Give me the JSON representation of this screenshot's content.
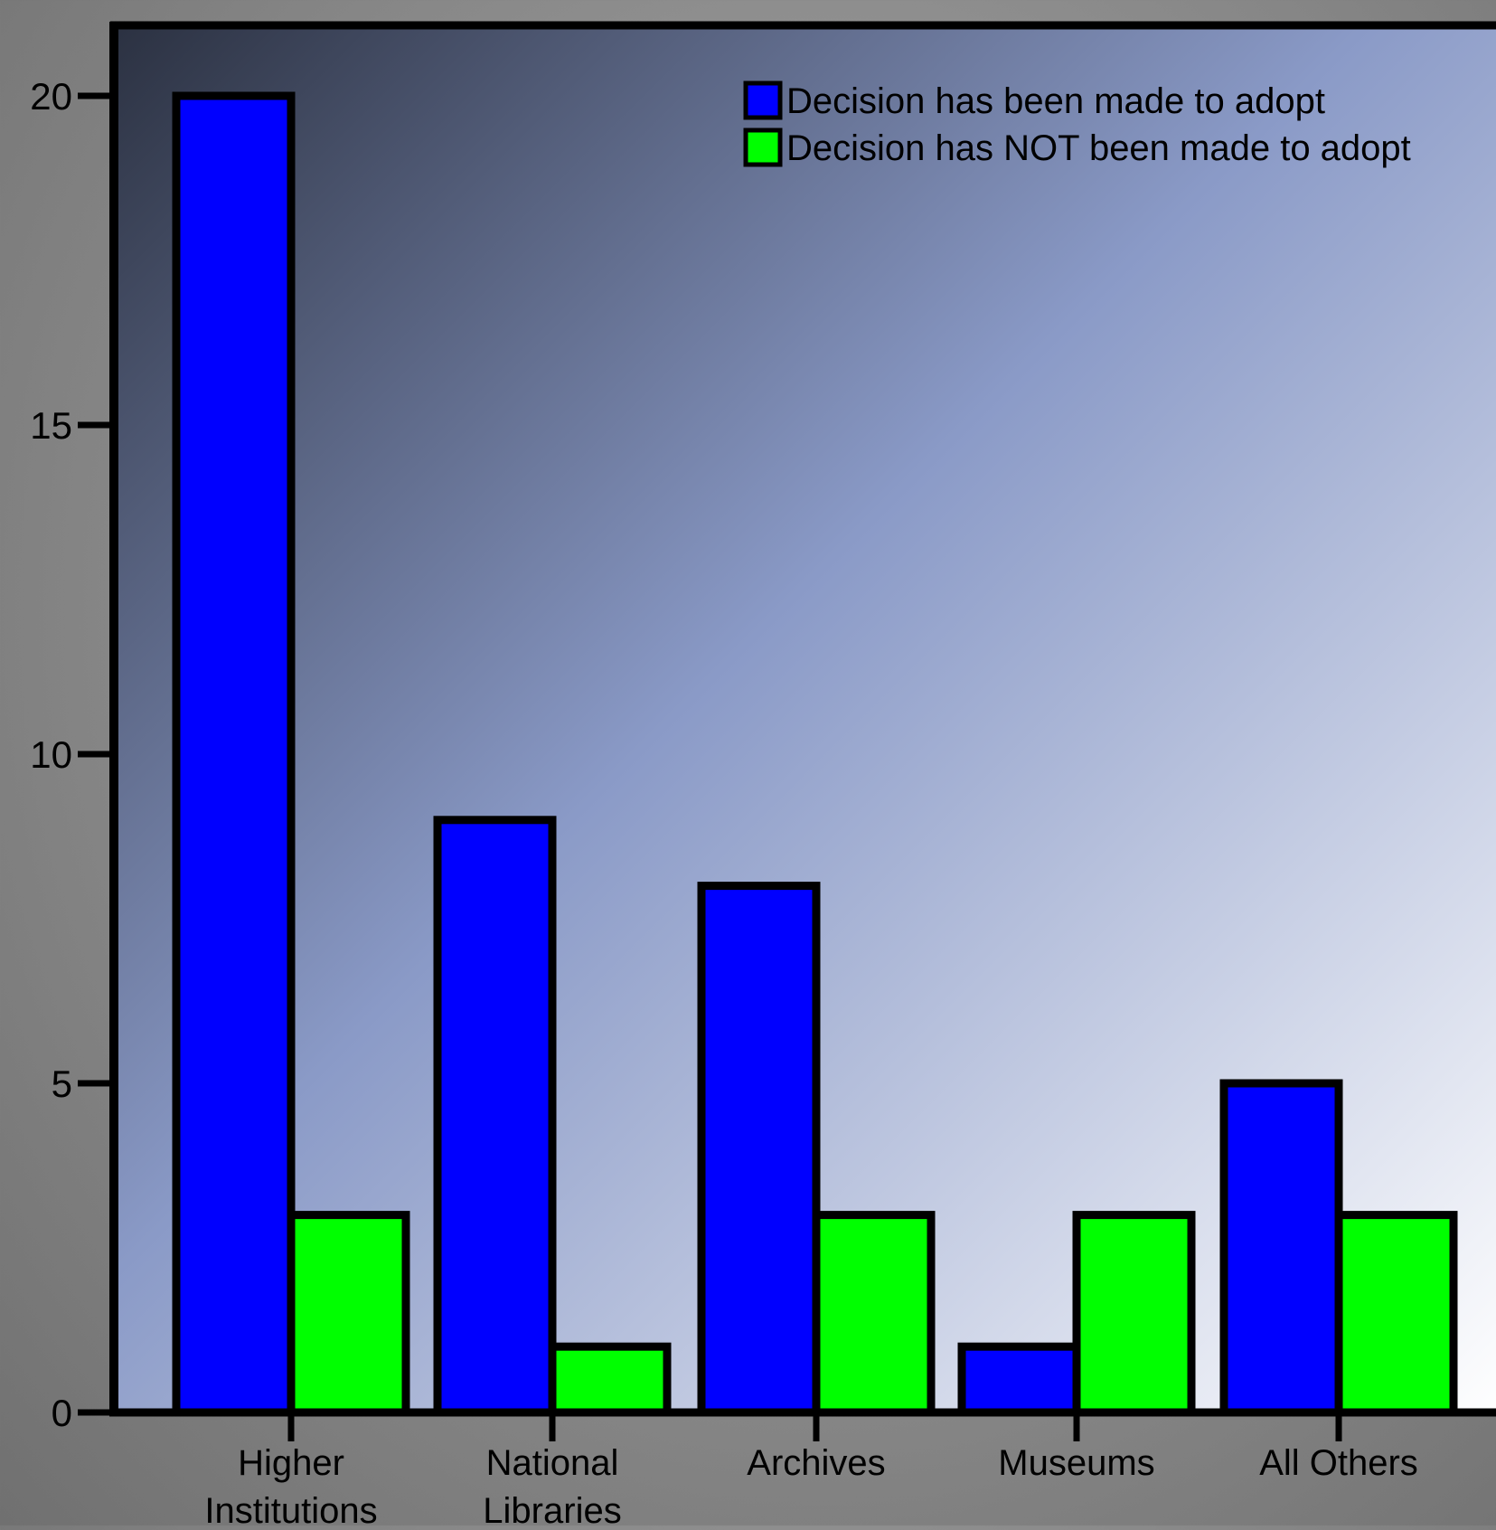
{
  "chart_data": {
    "type": "bar",
    "categories": [
      [
        "Higher",
        "Institutions"
      ],
      [
        "National",
        "Libraries"
      ],
      [
        "Archives"
      ],
      [
        "Museums"
      ],
      [
        "All Others"
      ]
    ],
    "series": [
      {
        "name": "Decision has been made to adopt",
        "color": "#0000ff",
        "values": [
          20,
          9,
          8,
          1,
          5
        ]
      },
      {
        "name": "Decision has NOT been made to adopt",
        "color": "#00ff00",
        "values": [
          3,
          1,
          3,
          3,
          3
        ]
      }
    ],
    "yticks": [
      0,
      5,
      10,
      15,
      20
    ],
    "ylim": [
      0,
      21
    ],
    "title": "",
    "xlabel": "",
    "ylabel": "",
    "legend": {
      "position": "top-right"
    },
    "grid": false,
    "background": {
      "from": "#2b3141",
      "mid": "#8a9ac7",
      "to": "#ffffff"
    }
  }
}
